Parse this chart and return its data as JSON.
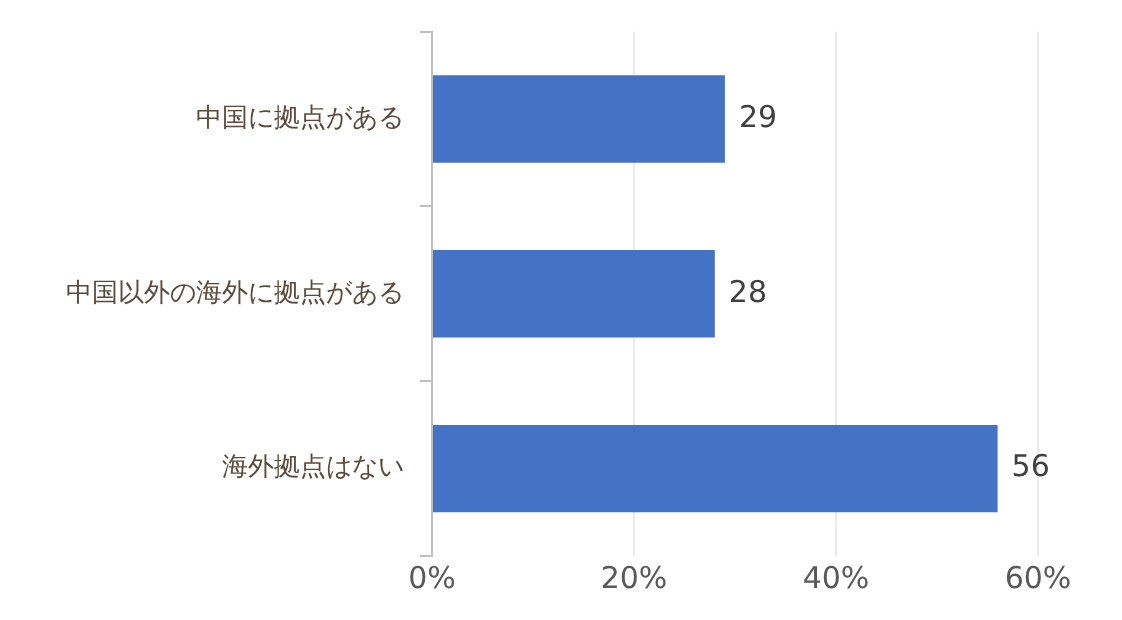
{
  "chart_data": {
    "type": "bar",
    "orientation": "horizontal",
    "categories": [
      "中国に拠点がある",
      "中国以外の海外に拠点がある",
      "海外拠点はない"
    ],
    "values": [
      29,
      28,
      56
    ],
    "color": "#4472c4",
    "xlim": [
      0,
      60
    ],
    "xticks": [
      {
        "value": 0,
        "label": "0%"
      },
      {
        "value": 20,
        "label": "20%"
      },
      {
        "value": 40,
        "label": "40%"
      },
      {
        "value": 60,
        "label": "60%"
      }
    ],
    "grid": "x",
    "data_labels": true
  }
}
